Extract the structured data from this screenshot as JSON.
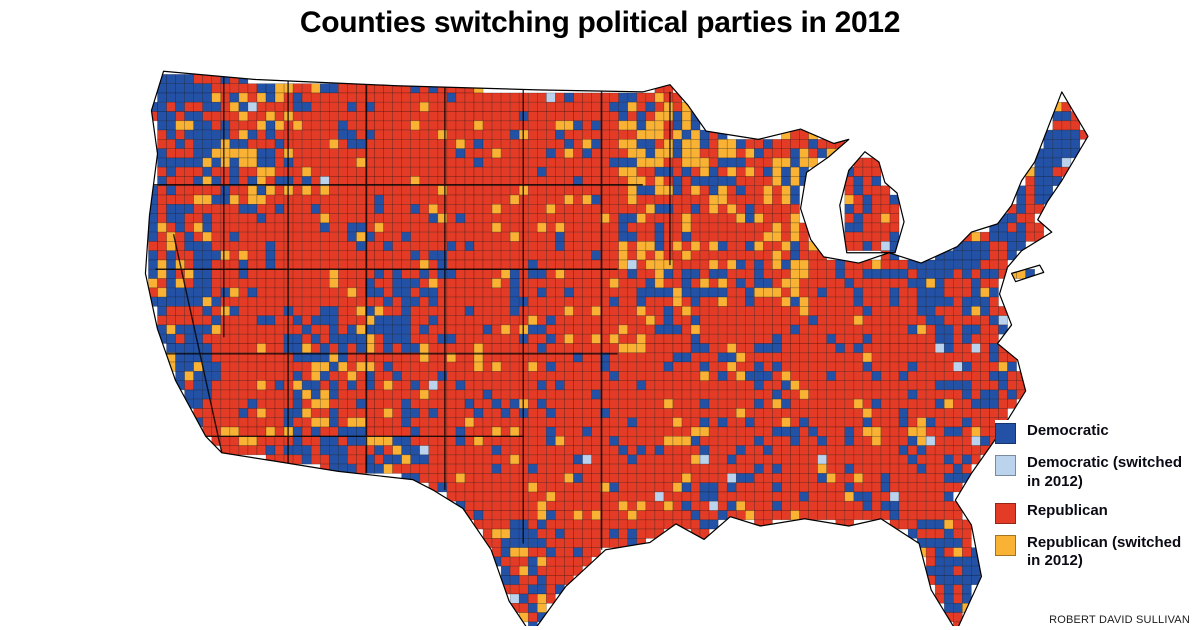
{
  "title": "Counties switching political parties in 2012",
  "attribution": "ROBERT DAVID SULLIVAN",
  "legend": {
    "items": [
      {
        "key": "democratic",
        "label": "Democratic",
        "color": "#2351A5"
      },
      {
        "key": "democratic_switched",
        "label": "Democratic (switched in 2012)",
        "color": "#BCD3EE"
      },
      {
        "key": "republican",
        "label": "Republican",
        "color": "#E33B26"
      },
      {
        "key": "republican_switched",
        "label": "Republican (switched in 2012)",
        "color": "#F9B233"
      }
    ]
  },
  "map": {
    "description": "US county-level choropleth map",
    "border_color": "#000000",
    "water_color": "#ffffff"
  }
}
